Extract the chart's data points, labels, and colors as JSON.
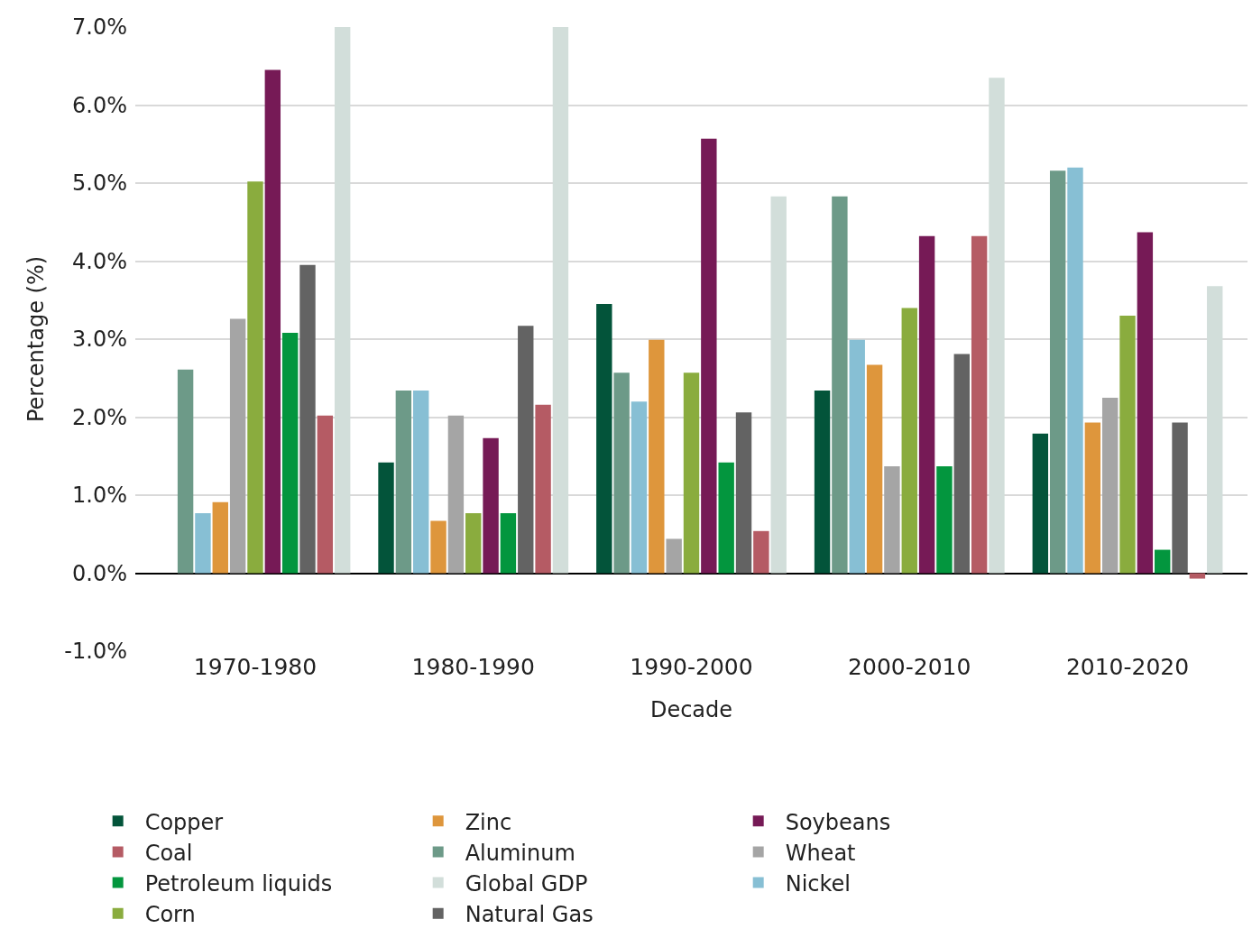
{
  "chart_data": {
    "type": "bar",
    "xlabel": "Decade",
    "ylabel": "Percentage (%)",
    "categories": [
      "1970-1980",
      "1980-1990",
      "1990-2000",
      "2000-2010",
      "2010-2020"
    ],
    "series": [
      {
        "name": "Copper",
        "color": "#03543a",
        "values": [
          null,
          1.42,
          3.45,
          2.34,
          1.79
        ]
      },
      {
        "name": "Aluminum",
        "color": "#6d9a88",
        "values": [
          2.61,
          2.34,
          2.57,
          4.83,
          5.16
        ]
      },
      {
        "name": "Nickel",
        "color": "#87bfd4",
        "values": [
          0.77,
          2.34,
          2.2,
          2.99,
          5.2
        ]
      },
      {
        "name": "Zinc",
        "color": "#de963c",
        "values": [
          0.91,
          0.67,
          2.99,
          2.67,
          1.93
        ]
      },
      {
        "name": "Wheat",
        "color": "#a5a5a5",
        "values": [
          3.26,
          2.02,
          0.44,
          1.37,
          2.25
        ]
      },
      {
        "name": "Corn",
        "color": "#8aac3e",
        "values": [
          5.02,
          0.77,
          2.57,
          3.4,
          3.3
        ]
      },
      {
        "name": "Soybeans",
        "color": "#761a56",
        "values": [
          6.45,
          1.73,
          5.57,
          4.32,
          4.37
        ]
      },
      {
        "name": "Petroleum liquids",
        "color": "#03963e",
        "values": [
          3.08,
          0.77,
          1.42,
          1.37,
          0.3
        ]
      },
      {
        "name": "Natural Gas",
        "color": "#636363",
        "values": [
          3.95,
          3.17,
          2.06,
          2.81,
          1.93
        ]
      },
      {
        "name": "Coal",
        "color": "#b55b64",
        "values": [
          2.02,
          2.16,
          0.54,
          4.32,
          -0.07
        ]
      },
      {
        "name": "Global GDP",
        "color": "#d2deda",
        "values": [
          7.0,
          7.0,
          4.83,
          6.35,
          3.68
        ]
      }
    ],
    "ylim": [
      -1,
      7
    ],
    "yticks": [
      {
        "value": -1,
        "label": "-1.0%"
      },
      {
        "value": 0,
        "label": "0.0%"
      },
      {
        "value": 1,
        "label": "1.0%"
      },
      {
        "value": 2,
        "label": "2.0%"
      },
      {
        "value": 3,
        "label": "3.0%"
      },
      {
        "value": 4,
        "label": "4.0%"
      },
      {
        "value": 5,
        "label": "5.0%"
      },
      {
        "value": 6,
        "label": "6.0%"
      },
      {
        "value": 7,
        "label": "7.0%"
      }
    ],
    "grid": "y",
    "legend": "bottom"
  }
}
